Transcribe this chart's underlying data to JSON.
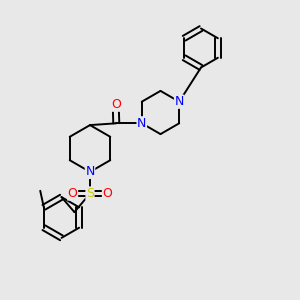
{
  "bg_color": "#e8e8e8",
  "bond_color": "#000000",
  "N_color": "#0000ff",
  "O_color": "#ff0000",
  "S_color": "#cccc00",
  "figsize": [
    3.0,
    3.0
  ],
  "dpi": 100,
  "xlim": [
    0,
    10
  ],
  "ylim": [
    0,
    10
  ]
}
